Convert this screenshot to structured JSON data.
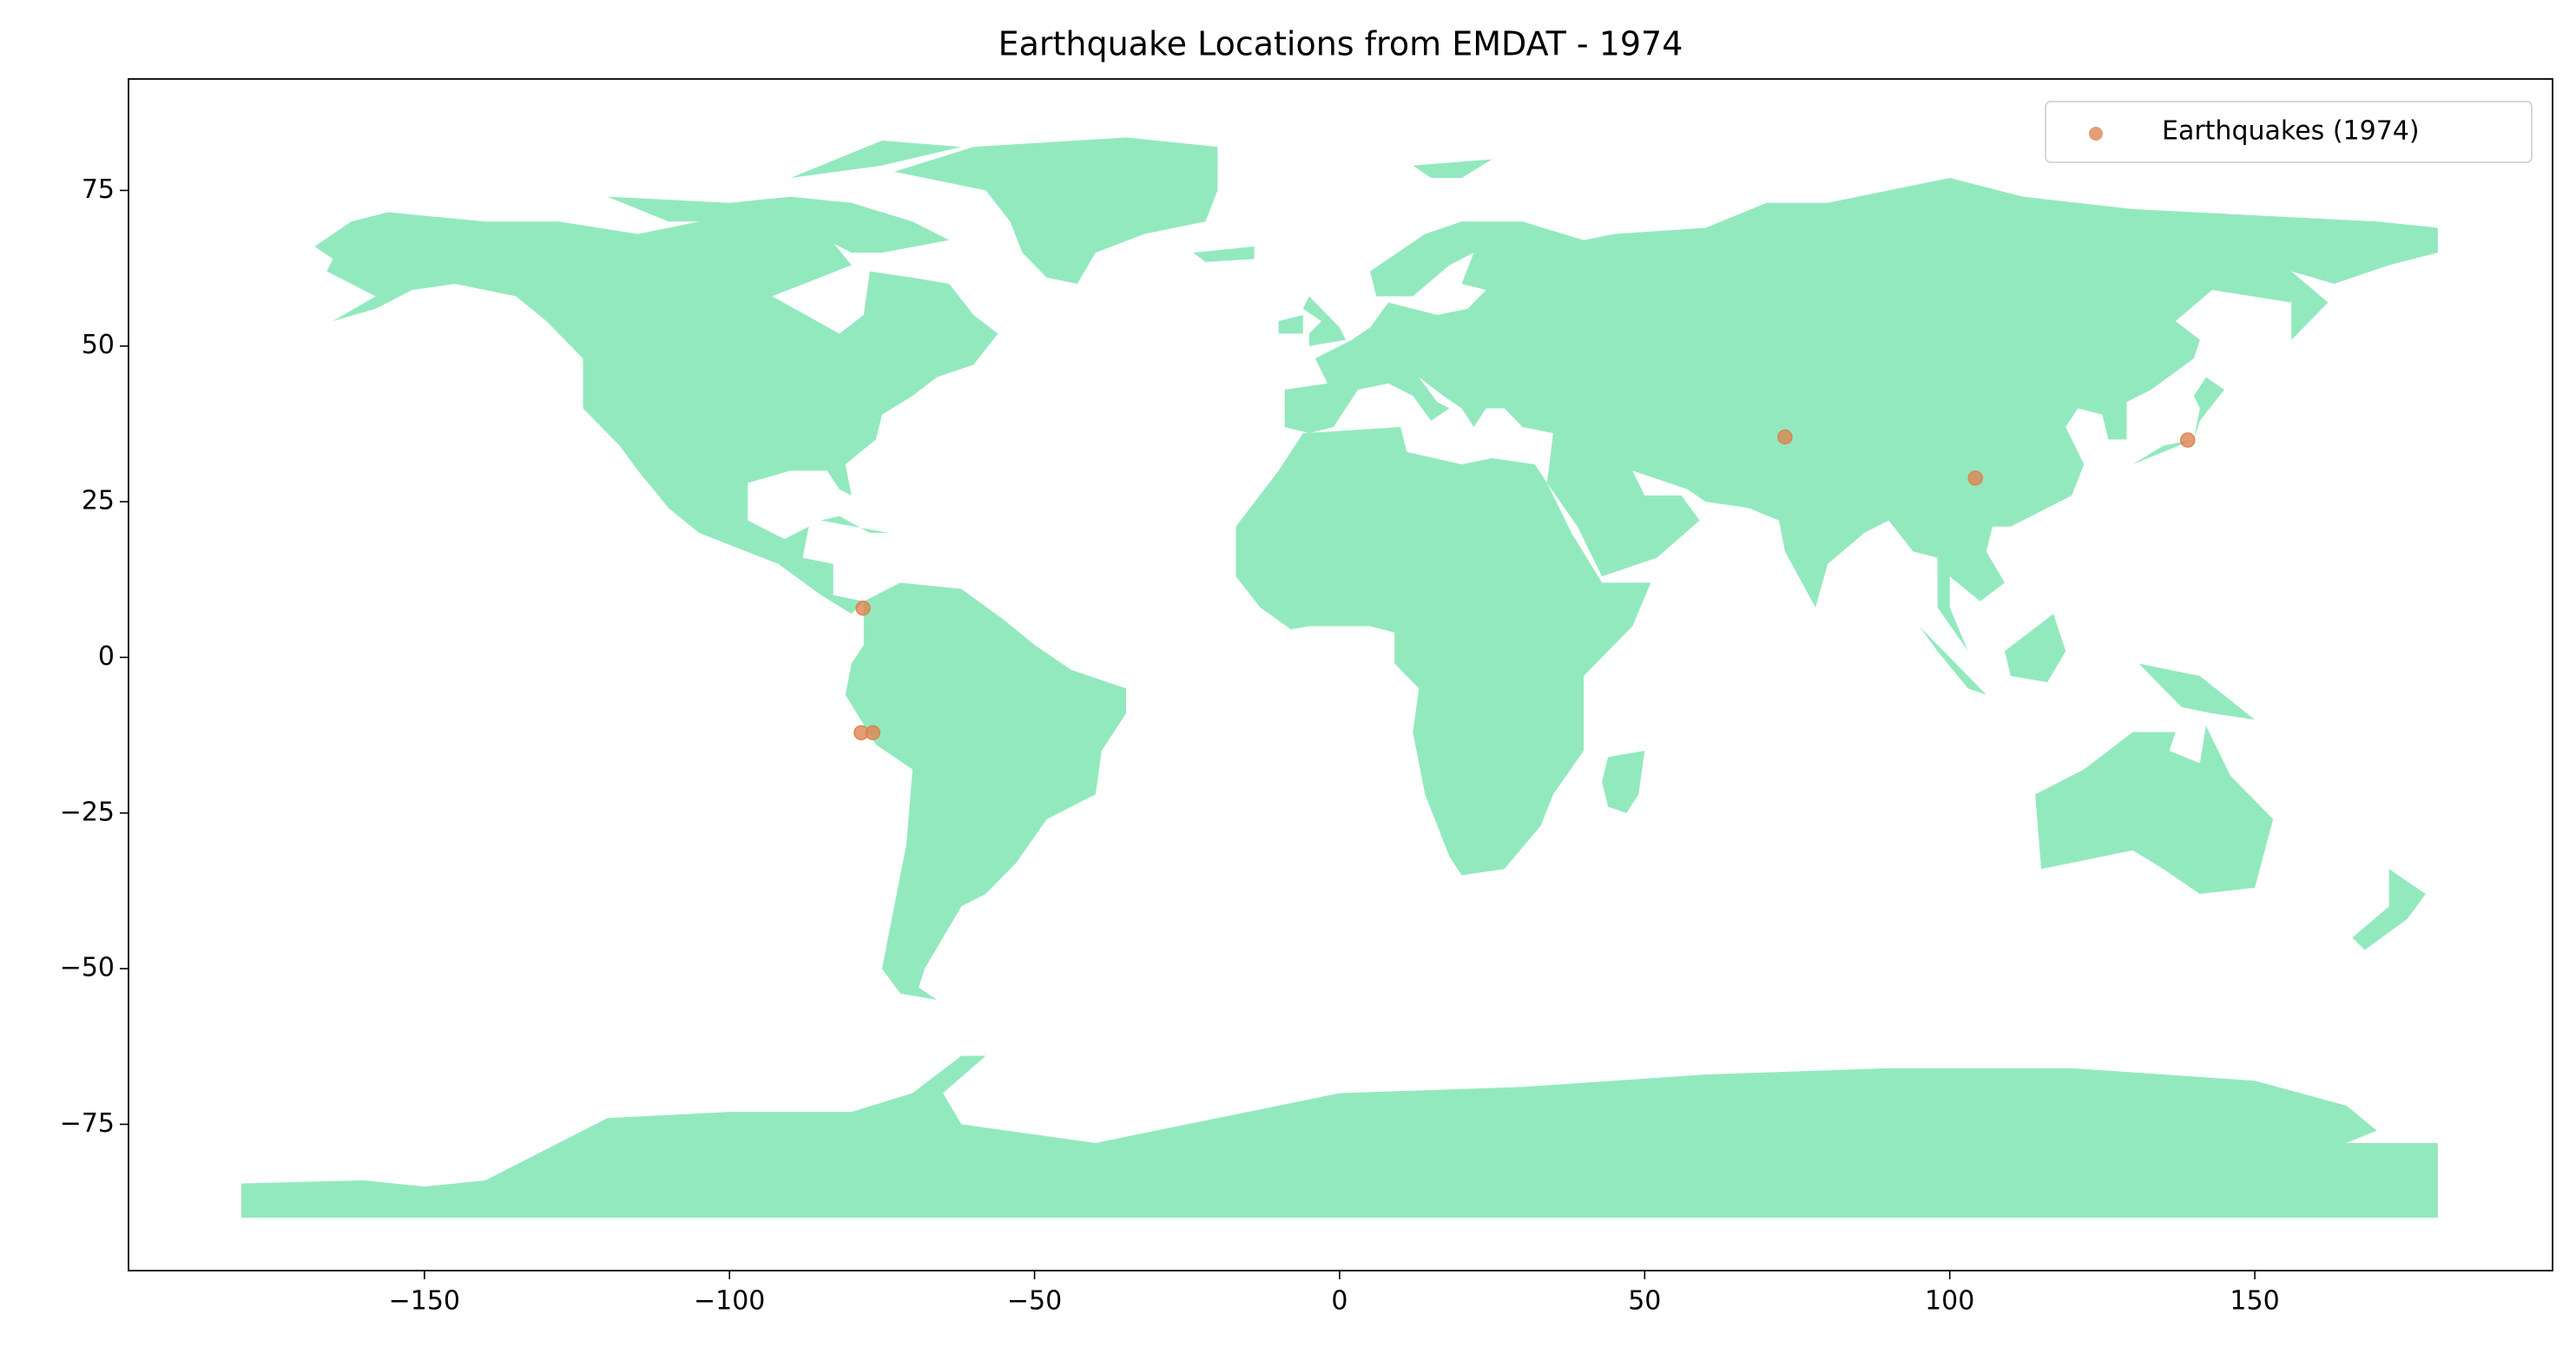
{
  "chart_data": {
    "type": "scatter",
    "title": "Earthquake Locations from EMDAT - 1974",
    "x": [
      73.0,
      104.2,
      139.0,
      -78.1,
      -78.4,
      -76.5
    ],
    "series": [
      {
        "name": "Earthquakes (1974)",
        "color": "#dd8452",
        "values": [
          35.4,
          28.8,
          34.9,
          7.9,
          -12.1,
          -12.1
        ]
      }
    ],
    "xlim": [
      -198.5,
      198.8
    ],
    "ylim": [
      -98.5,
      92.9
    ],
    "xticks": [
      {
        "value": -150,
        "label": "−150"
      },
      {
        "value": -100,
        "label": "−100"
      },
      {
        "value": -50,
        "label": "−50"
      },
      0,
      50,
      100,
      150
    ],
    "yticks": [
      {
        "value": -75,
        "label": "−75"
      },
      {
        "value": -50,
        "label": "−50"
      },
      {
        "value": -25,
        "label": "−25"
      },
      0,
      25,
      50,
      75
    ],
    "grid": false,
    "legend": "upper right",
    "land_color": "#93e9be"
  }
}
